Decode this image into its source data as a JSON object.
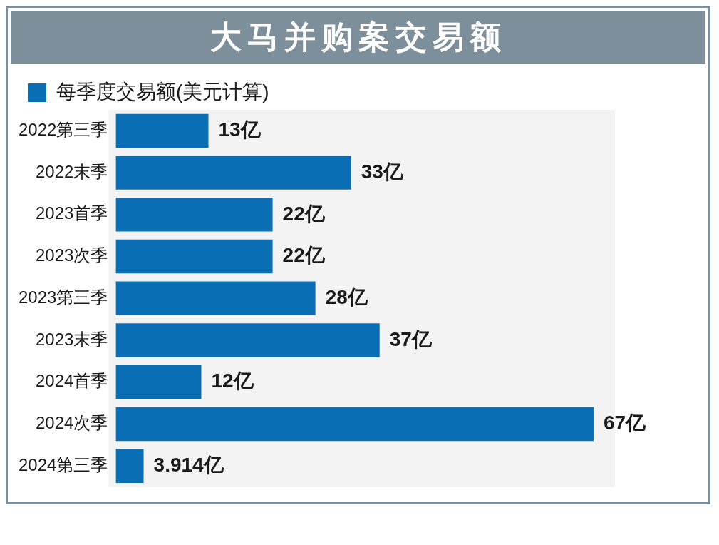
{
  "chart_data": {
    "type": "bar",
    "title": "大马并购案交易额",
    "orientation": "horizontal",
    "legend": "top left",
    "categories": [
      "2022第三季",
      "2022末季",
      "2023首季",
      "2023次季",
      "2023第三季",
      "2023末季",
      "2024首季",
      "2024次季",
      "2024第三季"
    ],
    "series": [
      {
        "name": "每季度交易额(美元计算)",
        "color": "#0a6eb4",
        "values": [
          13,
          33,
          22,
          22,
          28,
          37,
          12,
          67,
          3.914
        ],
        "value_labels": [
          "13亿",
          "33亿",
          "22亿",
          "22亿",
          "28亿",
          "37亿",
          "12亿",
          "67亿",
          "3.914亿"
        ]
      }
    ]
  }
}
